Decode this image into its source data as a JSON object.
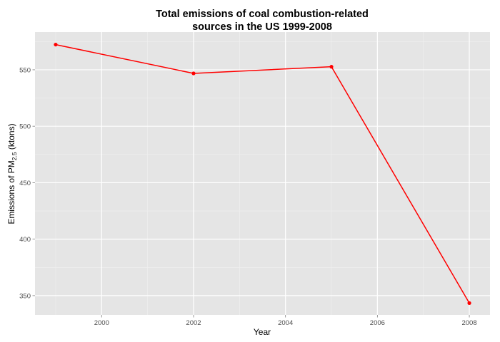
{
  "chart_data": {
    "type": "line",
    "title_lines": [
      "Total emissions of coal combustion-related",
      "sources in the US 1999-2008"
    ],
    "xlabel": "Year",
    "ylabel": {
      "prefix": "Emissions of PM",
      "subscript": "2.5",
      "suffix": " (ktons)"
    },
    "x": [
      1999,
      2002,
      2005,
      2008
    ],
    "series": [
      {
        "values": [
          572.3,
          546.8,
          552.7,
          343.4
        ],
        "color": "#ff0000"
      }
    ],
    "xlim": [
      1998.55,
      2008.45
    ],
    "ylim": [
      332.9,
      583.4
    ],
    "x_ticks": [
      2000,
      2002,
      2004,
      2006,
      2008
    ],
    "x_tick_labels": [
      "2000",
      "2002",
      "2004",
      "2006",
      "2008"
    ],
    "y_ticks": [
      350,
      400,
      450,
      500,
      550
    ],
    "y_tick_labels": [
      "350",
      "400",
      "450",
      "500",
      "550"
    ],
    "grid": true,
    "panel_background": "#e5e5e5",
    "grid_color": "#ffffff",
    "legend": "none"
  }
}
